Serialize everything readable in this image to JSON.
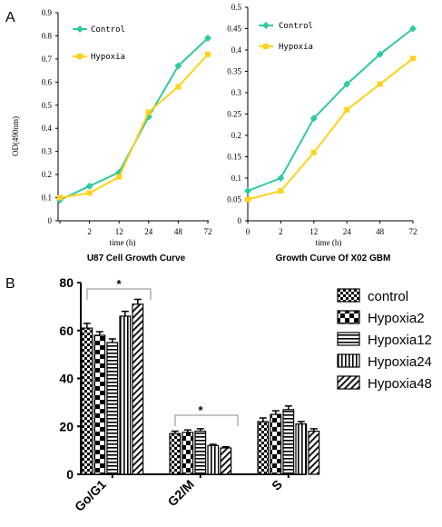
{
  "panel_labels": {
    "a": "A",
    "b": "B"
  },
  "colors": {
    "control": "#2ecaa0",
    "hypoxia": "#ffd21a",
    "axis": "#000000"
  },
  "chart_data": [
    {
      "type": "line",
      "title": "U87 Cell Growth Curve",
      "xlabel": "time (h)",
      "ylabel": "OD(490nm)",
      "x_ticks": [
        "",
        "2",
        "12",
        "24",
        "48",
        "72"
      ],
      "ylim": [
        0,
        0.9
      ],
      "y_ticks": [
        "0",
        "0.1",
        "0.2",
        "0.3",
        "0.4",
        "0.5",
        "0.6",
        "0.7",
        "0.8",
        "0.9"
      ],
      "series": [
        {
          "name": "Control",
          "values": [
            0.09,
            0.15,
            0.21,
            0.45,
            0.67,
            0.79
          ]
        },
        {
          "name": "Hypoxia",
          "values": [
            0.1,
            0.12,
            0.19,
            0.47,
            0.58,
            0.72
          ]
        }
      ],
      "legend": "top-left"
    },
    {
      "type": "line",
      "title": "Growth Curve Of X02 GBM",
      "xlabel": "time (h)",
      "ylabel": "",
      "x_ticks": [
        "0",
        "2",
        "12",
        "24",
        "48",
        "72"
      ],
      "ylim": [
        0,
        0.5
      ],
      "y_ticks": [
        "0",
        "0.05",
        "0.1",
        "0.15",
        "0.2",
        "0.25",
        "0.3",
        "0.35",
        "0.4",
        "0.45",
        "0.5"
      ],
      "series": [
        {
          "name": "Control",
          "values": [
            0.07,
            0.1,
            0.24,
            0.32,
            0.39,
            0.45
          ]
        },
        {
          "name": "Hypoxia",
          "values": [
            0.05,
            0.07,
            0.16,
            0.26,
            0.32,
            0.38
          ]
        }
      ],
      "legend": "top-left"
    },
    {
      "type": "bar",
      "categories": [
        "Go/G1",
        "G2/M",
        "S"
      ],
      "ylim": [
        0,
        80
      ],
      "y_ticks": [
        "0",
        "20",
        "40",
        "60",
        "80"
      ],
      "series": [
        {
          "name": "control",
          "values": [
            61,
            17,
            22
          ],
          "errors": [
            2,
            1,
            1.5
          ]
        },
        {
          "name": "Hypoxia2",
          "values": [
            58,
            17.5,
            25
          ],
          "errors": [
            1.5,
            1,
            1.5
          ]
        },
        {
          "name": "Hypoxia12",
          "values": [
            55,
            18,
            27
          ],
          "errors": [
            1.5,
            1,
            1.5
          ]
        },
        {
          "name": "Hypoxia24",
          "values": [
            66,
            12,
            21
          ],
          "errors": [
            2,
            0.5,
            1
          ]
        },
        {
          "name": "Hypoxia48",
          "values": [
            71,
            11,
            18
          ],
          "errors": [
            2,
            0.5,
            1
          ]
        }
      ],
      "significance": [
        "*",
        "*"
      ],
      "legend": "right"
    }
  ]
}
